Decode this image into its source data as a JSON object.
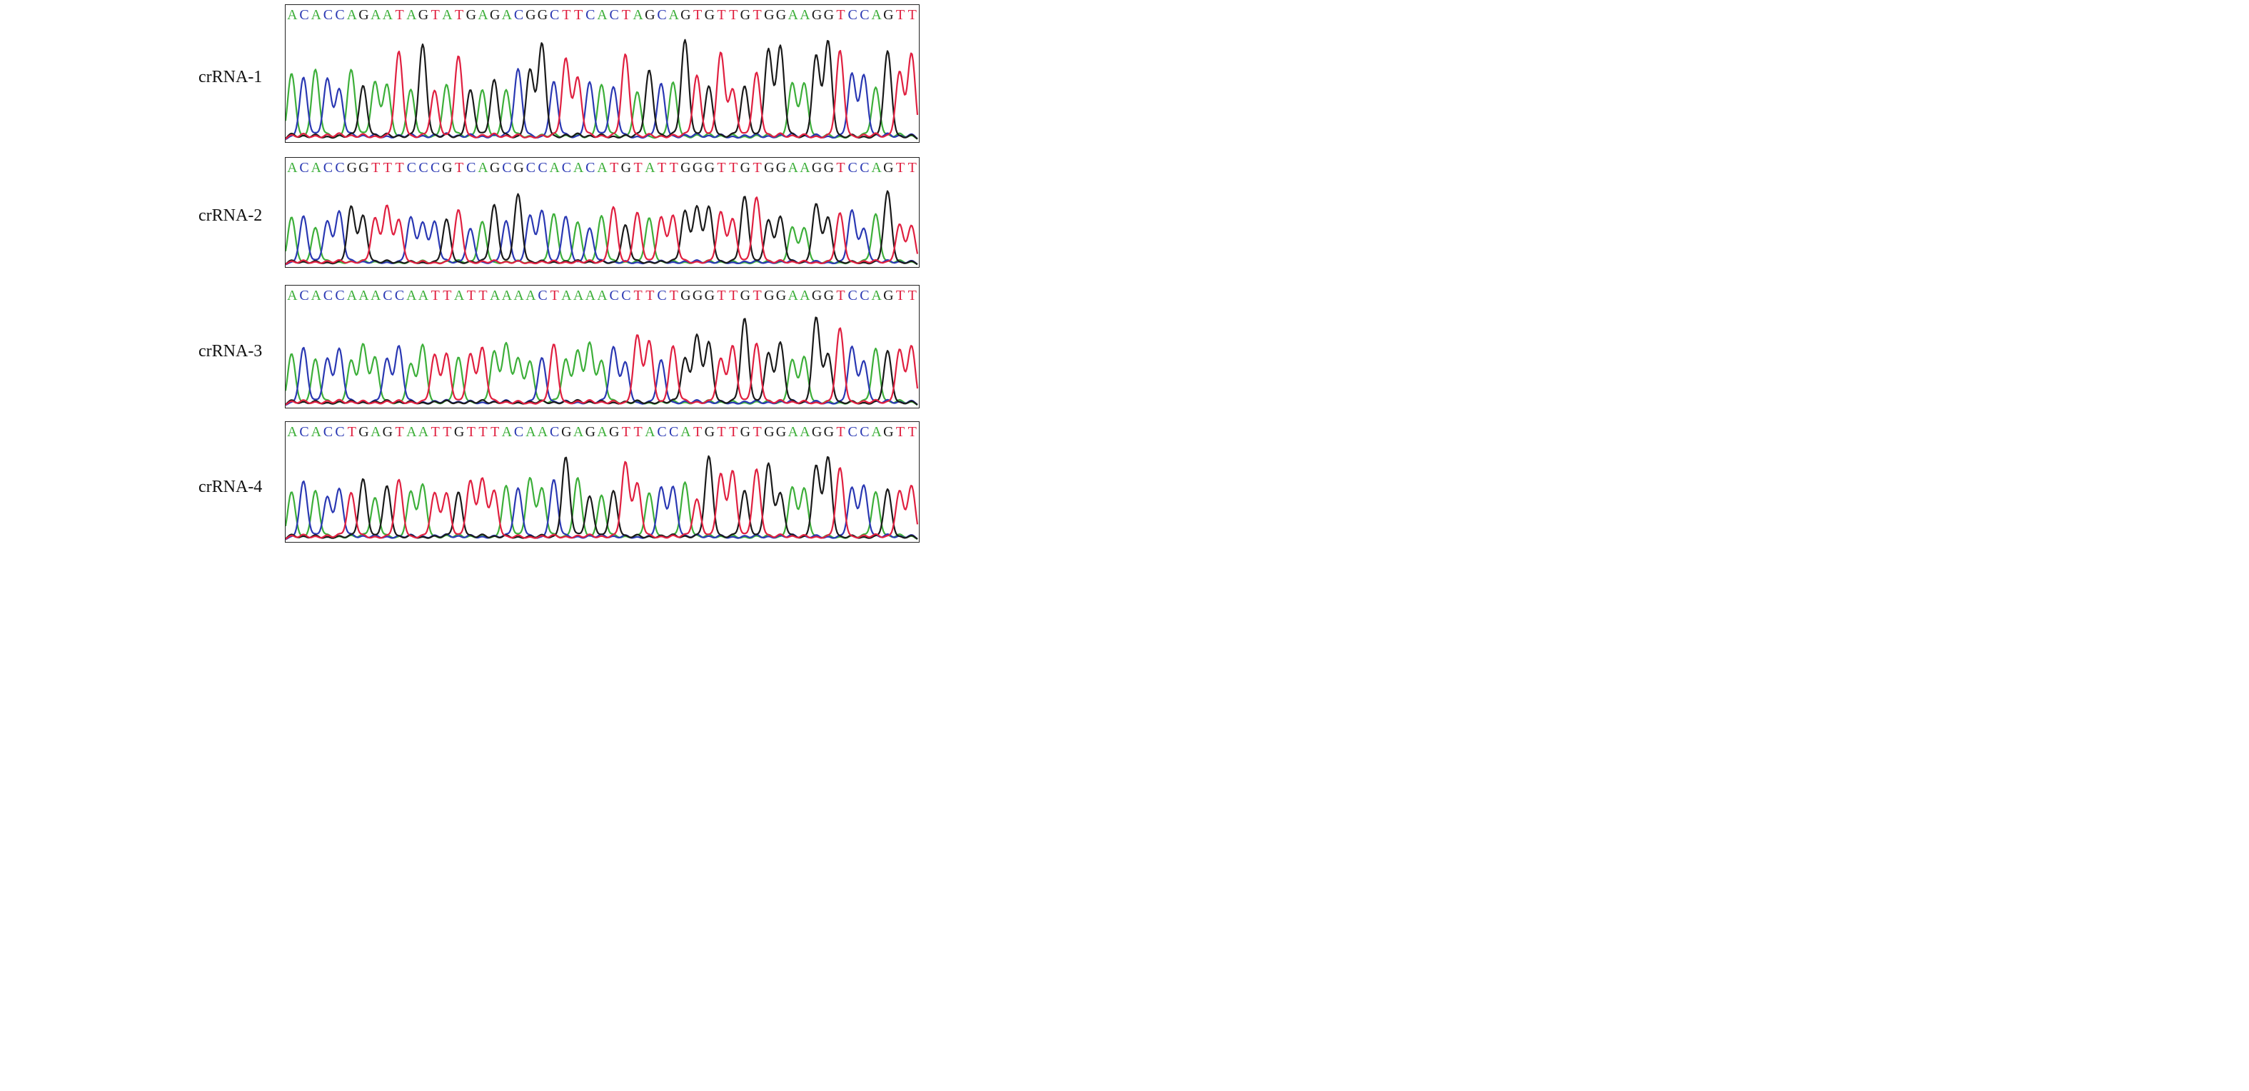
{
  "colors": {
    "A": "#3daf3a",
    "C": "#2a38b3",
    "G": "#1a1a1a",
    "T": "#e02040"
  },
  "panels": [
    {
      "label": "crRNA-1",
      "sequence": "ACACCAGAATAGTATGAGACGGCTTCACTAGCAGTGTTGTGGAAGGTCCAGTT"
    },
    {
      "label": "crRNA-2",
      "sequence": "ACACCGGTTTCCCGTCAGCGCCACACATGTATTGGGTTGTGGAAGGTCCAGTT"
    },
    {
      "label": "crRNA-3",
      "sequence": "ACACCAAACCAATTATTAAAACTAAAACCTTCTGGGTTGTGGAAGGTCCAGTT"
    },
    {
      "label": "crRNA-4",
      "sequence": "ACACCTGAGTAATTGTTTACAACGAGAGTTACCATGTTGTGGAAGGTCCAGTT"
    }
  ]
}
